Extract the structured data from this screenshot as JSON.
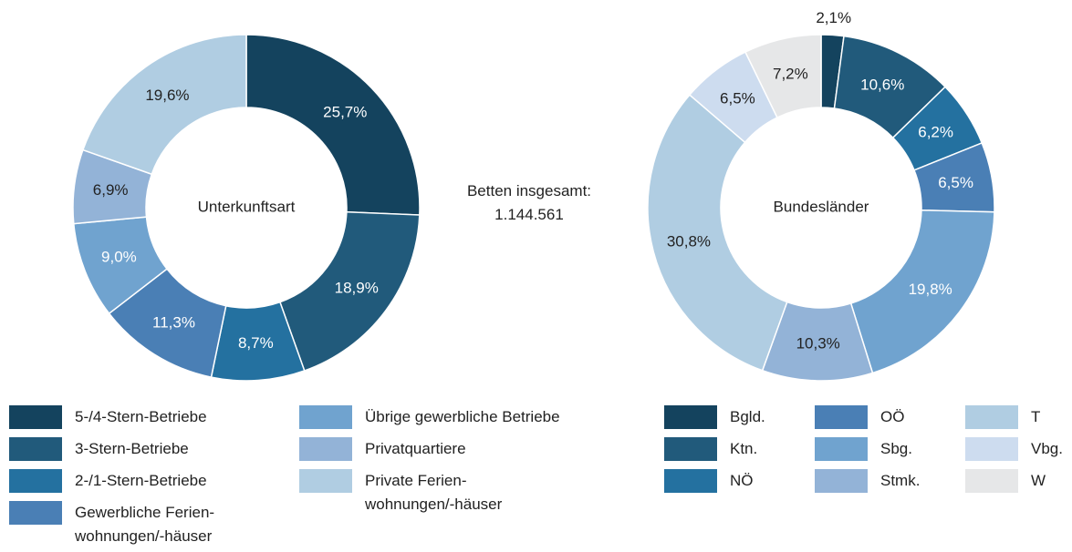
{
  "chart_data": [
    {
      "type": "pie",
      "title": "Unterkunftsart",
      "categories": [
        "5-/4-Stern-Betriebe",
        "3-Stern-Betriebe",
        "2-/1-Stern-Betriebe",
        "Gewerbliche Ferien-\nwohnungen/-häuser",
        "Übrige gewerbliche Betriebe",
        "Privatquartiere",
        "Private Ferien-\nwohnungen/-häuser"
      ],
      "values": [
        25.7,
        18.9,
        8.7,
        11.3,
        9.0,
        6.9,
        19.6
      ],
      "value_labels": [
        "25,7%",
        "18,9%",
        "8,7%",
        "11,3%",
        "9,0%",
        "6,9%",
        "19,6%"
      ],
      "colors": [
        "#14435e",
        "#215a7b",
        "#2471a0",
        "#4a7fb5",
        "#70a3cf",
        "#93b3d7",
        "#b0cde2"
      ]
    },
    {
      "type": "pie",
      "title": "Bundesländer",
      "categories": [
        "Bgld.",
        "Ktn.",
        "NÖ",
        "OÖ",
        "Sbg.",
        "Stmk.",
        "T",
        "Vbg.",
        "W"
      ],
      "values": [
        2.1,
        10.6,
        6.2,
        6.5,
        19.8,
        10.3,
        30.8,
        6.5,
        7.2
      ],
      "value_labels": [
        "2,1%",
        "10,6%",
        "6,2%",
        "6,5%",
        "19,8%",
        "10,3%",
        "30,8%",
        "6,5%",
        "7,2%"
      ],
      "colors": [
        "#14435e",
        "#215a7b",
        "#2471a0",
        "#4a7fb5",
        "#70a3cf",
        "#93b3d7",
        "#b0cde2",
        "#cddcef",
        "#e6e7e8"
      ]
    }
  ],
  "center_note": [
    "Betten insgesamt:",
    "1.144.561"
  ]
}
